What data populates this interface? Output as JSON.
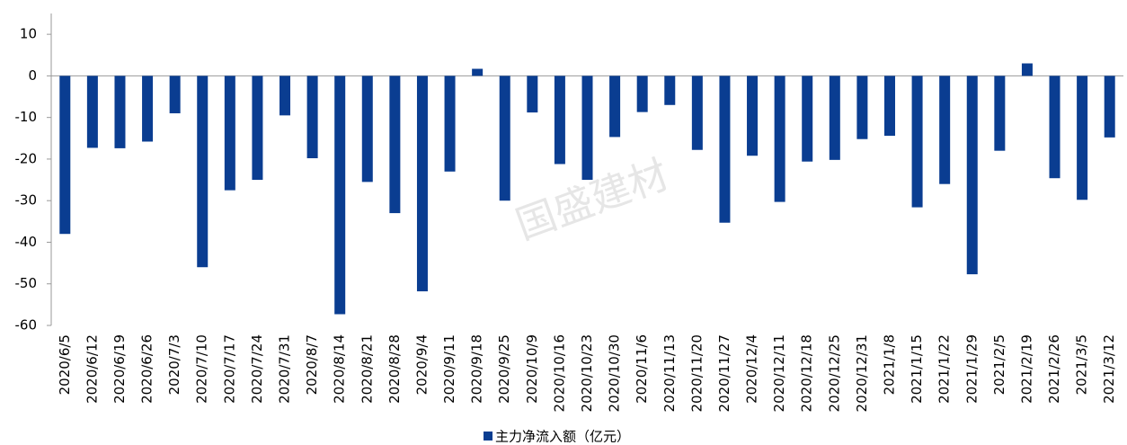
{
  "chart_data": {
    "type": "bar",
    "categories": [
      "2020/6/5",
      "2020/6/12",
      "2020/6/19",
      "2020/6/26",
      "2020/7/3",
      "2020/7/10",
      "2020/7/17",
      "2020/7/24",
      "2020/7/31",
      "2020/8/7",
      "2020/8/14",
      "2020/8/21",
      "2020/8/28",
      "2020/9/4",
      "2020/9/11",
      "2020/9/18",
      "2020/9/25",
      "2020/10/9",
      "2020/10/16",
      "2020/10/23",
      "2020/10/30",
      "2020/11/6",
      "2020/11/13",
      "2020/11/20",
      "2020/11/27",
      "2020/12/4",
      "2020/12/11",
      "2020/12/18",
      "2020/12/25",
      "2020/12/31",
      "2021/1/8",
      "2021/1/15",
      "2021/1/22",
      "2021/1/29",
      "2021/2/5",
      "2021/2/19",
      "2021/2/26",
      "2021/3/5",
      "2021/3/12"
    ],
    "series": [
      {
        "name": "主力净流入额（亿元）",
        "color": "#0a3d91",
        "values": [
          -38,
          -17.3,
          -17.4,
          -15.8,
          -9,
          -46,
          -27.5,
          -25,
          -9.5,
          -19.8,
          -57.3,
          -25.5,
          -33,
          -51.8,
          -23,
          1.7,
          -30,
          -8.8,
          -21.2,
          -25,
          -14.7,
          -8.7,
          -7,
          -17.8,
          -35.3,
          -19.2,
          -30.3,
          -20.6,
          -20.2,
          -15.2,
          -14.4,
          -31.6,
          -26,
          -47.7,
          -18,
          3,
          -24.6,
          -29.8,
          -14.8
        ]
      }
    ],
    "ylim": [
      -60,
      15
    ],
    "yticks": [
      -60,
      -50,
      -40,
      -30,
      -20,
      -10,
      0,
      10
    ],
    "watermark": "国盛建材",
    "legend": "bottom"
  }
}
